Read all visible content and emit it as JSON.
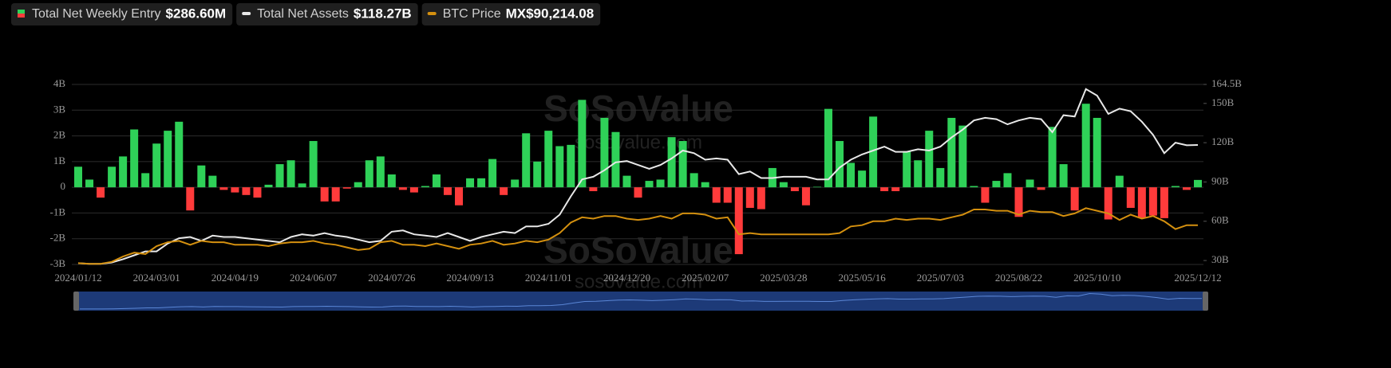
{
  "chart_data": {
    "type": "bar-line",
    "watermark": {
      "brand": "SoSoValue",
      "site": "sosovalue.com"
    },
    "categories": [
      "2024/01/12",
      null,
      null,
      null,
      null,
      null,
      null,
      "2024/03/01",
      null,
      null,
      null,
      null,
      null,
      null,
      "2024/04/19",
      null,
      null,
      null,
      null,
      null,
      null,
      "2024/06/07",
      null,
      null,
      null,
      null,
      null,
      null,
      "2024/07/26",
      null,
      null,
      null,
      null,
      null,
      null,
      "2024/09/13",
      null,
      null,
      null,
      null,
      null,
      null,
      "2024/11/01",
      null,
      null,
      null,
      null,
      null,
      null,
      "2024/12/20",
      null,
      null,
      null,
      null,
      null,
      null,
      "2025/02/07",
      null,
      null,
      null,
      null,
      null,
      null,
      "2025/03/28",
      null,
      null,
      null,
      null,
      null,
      null,
      "2025/05/16",
      null,
      null,
      null,
      null,
      null,
      null,
      "2025/07/03",
      null,
      null,
      null,
      null,
      null,
      null,
      "2025/08/22",
      null,
      null,
      null,
      null,
      null,
      null,
      "2025/10/10",
      null,
      null,
      null,
      null,
      null,
      null,
      null,
      null,
      "2025/12/12"
    ],
    "series": [
      {
        "name": "Total Net Weekly Entry",
        "legend_value": "$286.60M",
        "color": "#2fd158",
        "negative_color": "#ff3b3b",
        "values": [
          0.8,
          0.3,
          -0.4,
          0.8,
          1.2,
          2.25,
          0.55,
          1.7,
          2.2,
          2.55,
          -0.9,
          0.85,
          0.45,
          -0.1,
          -0.2,
          -0.3,
          -0.4,
          0.1,
          0.9,
          1.05,
          0.15,
          1.8,
          -0.55,
          -0.55,
          -0.05,
          0.2,
          1.05,
          1.2,
          0.5,
          -0.1,
          -0.2,
          0.05,
          0.5,
          -0.3,
          -0.7,
          0.35,
          0.35,
          1.1,
          -0.3,
          0.3,
          2.1,
          1.0,
          2.2,
          1.6,
          1.65,
          3.4,
          -0.15,
          2.7,
          2.15,
          0.45,
          -0.4,
          0.25,
          0.3,
          1.95,
          1.8,
          0.55,
          0.2,
          -0.6,
          -0.6,
          -2.6,
          -0.8,
          -0.85,
          0.75,
          0.2,
          -0.15,
          -0.7,
          0.02,
          3.05,
          1.8,
          0.95,
          0.65,
          2.75,
          -0.15,
          -0.15,
          1.4,
          1.05,
          2.2,
          0.75,
          2.7,
          2.4,
          0.05,
          -0.6,
          0.25,
          0.55,
          -1.15,
          0.3,
          -0.1,
          2.35,
          0.9,
          -0.9,
          3.25,
          2.7,
          -1.25,
          0.45,
          -0.8,
          -1.2,
          -1.1,
          -1.2,
          0.05,
          -0.1,
          0.2866
        ]
      },
      {
        "name": "Total Net Assets",
        "legend_value": "$118.27B",
        "color": "#e8e8e8",
        "axis": "y2",
        "values": [
          28,
          27.5,
          27.5,
          28.5,
          31,
          34,
          37,
          37,
          43,
          47,
          48,
          45,
          49,
          48,
          48,
          47,
          46,
          45,
          44,
          48,
          50,
          49,
          51,
          49,
          48,
          46,
          44,
          45,
          52,
          53,
          50,
          49,
          48,
          51,
          48,
          45,
          48,
          50,
          52,
          51,
          56,
          56,
          58,
          65,
          79,
          92,
          94,
          99,
          105,
          106,
          103,
          100,
          103,
          108,
          114,
          112,
          107,
          108,
          107,
          96,
          98,
          93,
          93,
          94,
          94,
          94,
          92,
          92,
          101,
          107,
          111,
          114,
          117,
          113,
          113,
          115,
          114,
          117,
          124,
          130,
          137,
          139,
          138,
          134,
          137,
          139,
          138,
          128,
          141,
          140,
          161,
          156,
          142,
          146,
          144,
          136,
          126,
          112,
          120,
          118,
          118.27
        ]
      },
      {
        "name": "BTC Price",
        "legend_value": "MX$90,214.08",
        "color": "#d4900f",
        "axis": "y2",
        "values": [
          28,
          27.5,
          27.5,
          29,
          33,
          36,
          35,
          41,
          44,
          45,
          42,
          45,
          44,
          44,
          42,
          42,
          42,
          41,
          43,
          44,
          44,
          45,
          43,
          42,
          40,
          38,
          39,
          44,
          45,
          42,
          42,
          41,
          43,
          41,
          39,
          42,
          43,
          45,
          42,
          43,
          45,
          44,
          46,
          51,
          59,
          63,
          62,
          64,
          64,
          62,
          61,
          62,
          64,
          62,
          66,
          66,
          65,
          62,
          63,
          50,
          51,
          50,
          50,
          50,
          50,
          50,
          50,
          50,
          51,
          56,
          57,
          60,
          60,
          62,
          61,
          62,
          62,
          61,
          63,
          65,
          69,
          69,
          68,
          68,
          65,
          68,
          67,
          67,
          64,
          66,
          70,
          68,
          66,
          61,
          65,
          62,
          64,
          60,
          54,
          57,
          57
        ]
      }
    ],
    "ylim": [
      -3,
      4
    ],
    "yticks": [
      {
        "value": 4,
        "label": "4B"
      },
      {
        "value": 3,
        "label": "3B"
      },
      {
        "value": 2,
        "label": "2B"
      },
      {
        "value": 1,
        "label": "1B"
      },
      0,
      {
        "value": -1,
        "label": "-1B"
      },
      {
        "value": -2,
        "label": "-2B"
      },
      {
        "value": -3,
        "label": "-3B"
      }
    ],
    "y2lim": [
      27,
      164.5
    ],
    "y2ticks": [
      {
        "value": 164.5,
        "label": "164.5B"
      },
      {
        "value": 150,
        "label": "150B"
      },
      {
        "value": 120,
        "label": "120B"
      },
      {
        "value": 90,
        "label": "90B"
      },
      {
        "value": 60,
        "label": "60B"
      },
      {
        "value": 30,
        "label": "30B"
      }
    ],
    "grid": true
  }
}
